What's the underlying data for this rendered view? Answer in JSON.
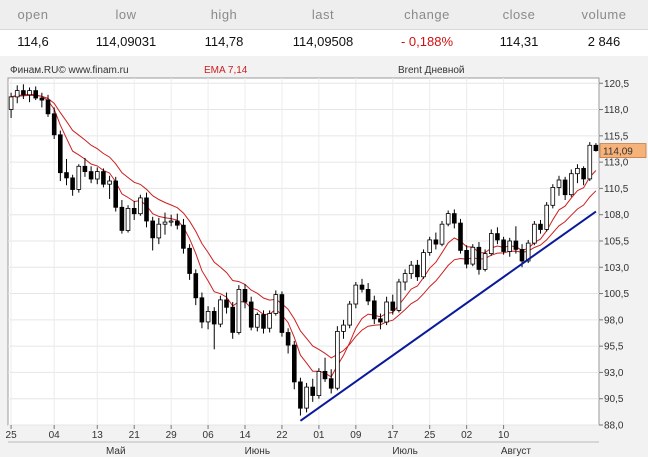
{
  "quote": {
    "headers": [
      "open",
      "low",
      "high",
      "last",
      "change",
      "close",
      "volume"
    ],
    "values": [
      "114,6",
      "114,09031",
      "114,78",
      "114,09508",
      "- 0,188%",
      "114,31",
      "2 846"
    ]
  },
  "chart_header": {
    "source": "Финам.RU© www.finam.ru",
    "indicator": "EMA 7,14",
    "title": "Brent Дневной"
  },
  "colors": {
    "up": "#ffffff",
    "down": "#000000",
    "ema": "#cc2020",
    "trend": "#0a1a9a",
    "last_bg": "#f5b27a"
  },
  "chart_data": {
    "type": "candlestick",
    "title": "Brent Дневной",
    "ylim": [
      88.0,
      121.0
    ],
    "y_ticks": [
      "120,5",
      "118,0",
      "115,5",
      "113,0",
      "110,5",
      "108,0",
      "105,5",
      "103,0",
      "100,5",
      "98,0",
      "95,5",
      "93,0",
      "90,5",
      "88,0"
    ],
    "y_tick_values": [
      120.5,
      118,
      115.5,
      113,
      110.5,
      108,
      105.5,
      103,
      100.5,
      98,
      95.5,
      93,
      90.5,
      88
    ],
    "last_price": "114,09",
    "x_day_ticks": [
      {
        "label": "25",
        "i": 0
      },
      {
        "label": "04",
        "i": 7
      },
      {
        "label": "13",
        "i": 14
      },
      {
        "label": "21",
        "i": 20
      },
      {
        "label": "29",
        "i": 26
      },
      {
        "label": "06",
        "i": 32
      },
      {
        "label": "14",
        "i": 38
      },
      {
        "label": "22",
        "i": 44
      },
      {
        "label": "01",
        "i": 50
      },
      {
        "label": "09",
        "i": 56
      },
      {
        "label": "17",
        "i": 62
      },
      {
        "label": "25",
        "i": 68
      },
      {
        "label": "02",
        "i": 74
      },
      {
        "label": "10",
        "i": 80
      }
    ],
    "x_month_ticks": [
      {
        "label": "Май",
        "i": 17
      },
      {
        "label": "Июнь",
        "i": 40
      },
      {
        "label": "Июль",
        "i": 64
      },
      {
        "label": "Август",
        "i": 82
      }
    ],
    "candles": [
      [
        118.0,
        119.6,
        117.2,
        119.2
      ],
      [
        119.2,
        120.3,
        118.6,
        119.8
      ],
      [
        119.8,
        120.4,
        119.0,
        119.4
      ],
      [
        119.4,
        120.1,
        118.7,
        119.8
      ],
      [
        119.8,
        120.2,
        118.9,
        119.1
      ],
      [
        119.1,
        119.6,
        118.2,
        118.9
      ],
      [
        118.9,
        119.4,
        117.3,
        117.6
      ],
      [
        117.6,
        118.2,
        115.2,
        115.6
      ],
      [
        115.6,
        116.0,
        111.2,
        112.0
      ],
      [
        112.0,
        113.3,
        110.8,
        111.5
      ],
      [
        111.5,
        111.8,
        109.8,
        110.4
      ],
      [
        110.4,
        112.8,
        110.1,
        112.6
      ],
      [
        112.6,
        113.4,
        111.6,
        112.1
      ],
      [
        112.1,
        112.6,
        111.0,
        111.4
      ],
      [
        111.4,
        112.5,
        110.9,
        112.1
      ],
      [
        112.1,
        112.4,
        110.6,
        110.9
      ],
      [
        110.9,
        111.7,
        109.5,
        111.2
      ],
      [
        111.2,
        111.6,
        108.3,
        108.7
      ],
      [
        108.7,
        109.4,
        106.2,
        106.5
      ],
      [
        106.5,
        108.9,
        106.3,
        108.6
      ],
      [
        108.6,
        109.3,
        107.5,
        108.1
      ],
      [
        108.1,
        109.9,
        107.9,
        109.6
      ],
      [
        109.6,
        110.1,
        106.8,
        107.4
      ],
      [
        107.4,
        107.8,
        104.6,
        105.8
      ],
      [
        105.8,
        107.7,
        105.2,
        107.1
      ],
      [
        107.1,
        108.2,
        106.1,
        107.3
      ],
      [
        107.3,
        108.0,
        106.9,
        107.4
      ],
      [
        107.4,
        108.1,
        106.6,
        107.0
      ],
      [
        107.0,
        107.6,
        104.3,
        104.8
      ],
      [
        104.8,
        105.2,
        101.8,
        102.4
      ],
      [
        102.4,
        102.8,
        99.4,
        100.1
      ],
      [
        100.1,
        100.6,
        97.2,
        97.8
      ],
      [
        97.8,
        99.3,
        97.1,
        98.8
      ],
      [
        98.8,
        99.2,
        95.2,
        97.6
      ],
      [
        97.6,
        100.3,
        97.3,
        99.9
      ],
      [
        99.9,
        100.6,
        98.6,
        99.2
      ],
      [
        99.2,
        99.7,
        96.2,
        96.8
      ],
      [
        96.8,
        101.3,
        96.6,
        100.9
      ],
      [
        100.9,
        101.4,
        99.1,
        99.7
      ],
      [
        99.7,
        100.2,
        97.0,
        97.3
      ],
      [
        97.3,
        98.7,
        96.9,
        98.5
      ],
      [
        98.5,
        98.9,
        96.7,
        97.2
      ],
      [
        97.2,
        98.9,
        96.8,
        98.6
      ],
      [
        98.6,
        100.8,
        98.4,
        100.4
      ],
      [
        100.4,
        100.7,
        96.4,
        96.8
      ],
      [
        96.8,
        97.2,
        94.8,
        95.6
      ],
      [
        95.6,
        96.0,
        91.4,
        92.1
      ],
      [
        92.1,
        92.5,
        88.9,
        89.6
      ],
      [
        89.6,
        92.0,
        89.2,
        91.6
      ],
      [
        91.6,
        92.4,
        90.2,
        90.8
      ],
      [
        90.8,
        93.4,
        90.5,
        93.1
      ],
      [
        93.1,
        94.4,
        92.1,
        92.4
      ],
      [
        92.4,
        93.3,
        91.0,
        91.5
      ],
      [
        91.5,
        97.4,
        91.3,
        96.9
      ],
      [
        96.9,
        98.0,
        96.2,
        97.5
      ],
      [
        97.5,
        99.8,
        97.2,
        99.5
      ],
      [
        99.5,
        101.6,
        99.1,
        101.3
      ],
      [
        101.3,
        101.9,
        100.6,
        100.9
      ],
      [
        100.9,
        101.5,
        99.4,
        99.8
      ],
      [
        99.8,
        100.3,
        97.6,
        98.1
      ],
      [
        98.1,
        98.6,
        97.1,
        97.8
      ],
      [
        97.8,
        100.2,
        97.5,
        99.7
      ],
      [
        99.7,
        100.4,
        98.5,
        98.9
      ],
      [
        98.9,
        101.9,
        98.7,
        101.6
      ],
      [
        101.6,
        102.8,
        100.8,
        102.4
      ],
      [
        102.4,
        103.6,
        101.9,
        103.2
      ],
      [
        103.2,
        103.7,
        101.7,
        102.1
      ],
      [
        102.1,
        104.7,
        101.9,
        104.4
      ],
      [
        104.4,
        105.9,
        104.1,
        105.6
      ],
      [
        105.6,
        106.3,
        104.7,
        105.2
      ],
      [
        105.2,
        107.4,
        105.0,
        107.1
      ],
      [
        107.1,
        108.4,
        106.9,
        108.1
      ],
      [
        108.1,
        108.5,
        106.7,
        107.2
      ],
      [
        107.2,
        107.6,
        104.3,
        104.6
      ],
      [
        104.6,
        105.1,
        102.9,
        103.3
      ],
      [
        103.3,
        105.2,
        103.1,
        104.9
      ],
      [
        104.9,
        105.4,
        102.3,
        102.8
      ],
      [
        102.8,
        104.7,
        102.6,
        104.3
      ],
      [
        104.3,
        106.6,
        104.1,
        106.2
      ],
      [
        106.2,
        106.8,
        105.2,
        105.6
      ],
      [
        105.6,
        105.9,
        104.2,
        104.5
      ],
      [
        104.5,
        105.8,
        104.0,
        105.5
      ],
      [
        105.5,
        106.9,
        104.3,
        104.7
      ],
      [
        104.7,
        105.2,
        103.0,
        103.6
      ],
      [
        103.6,
        105.6,
        103.4,
        105.3
      ],
      [
        105.3,
        107.4,
        105.1,
        107.1
      ],
      [
        107.1,
        107.5,
        106.2,
        106.6
      ],
      [
        106.6,
        109.2,
        106.4,
        108.9
      ],
      [
        108.9,
        110.9,
        108.6,
        110.6
      ],
      [
        110.6,
        111.7,
        109.8,
        111.3
      ],
      [
        111.3,
        111.6,
        109.4,
        109.9
      ],
      [
        109.9,
        112.3,
        109.7,
        111.9
      ],
      [
        111.9,
        112.8,
        111.0,
        112.4
      ],
      [
        112.4,
        112.6,
        110.8,
        111.4
      ],
      [
        111.4,
        114.9,
        111.2,
        114.6
      ],
      [
        114.6,
        114.8,
        114.0,
        114.1
      ]
    ],
    "trendline": {
      "from": [
        47,
        88.4
      ],
      "to": [
        95,
        108.3
      ]
    }
  }
}
